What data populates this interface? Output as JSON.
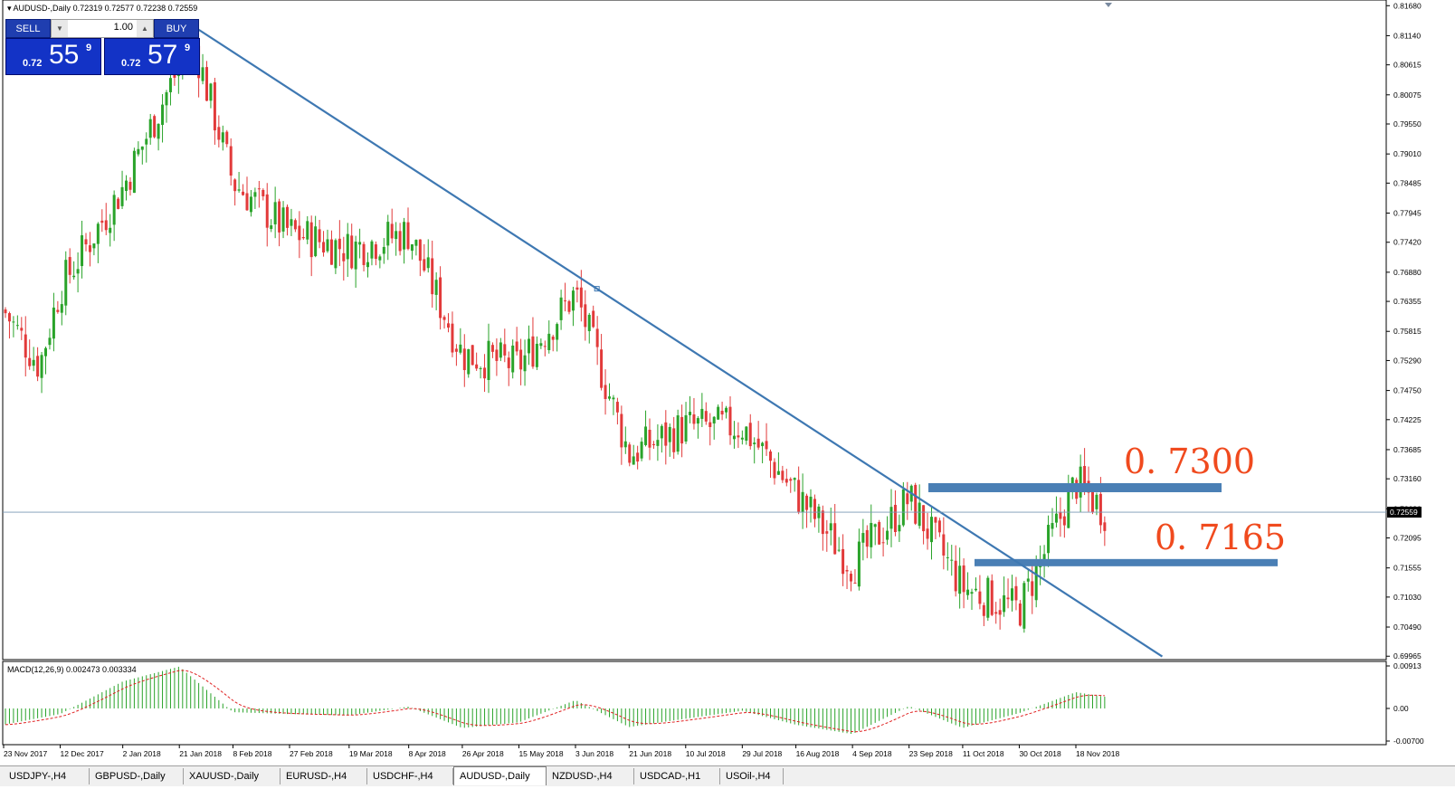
{
  "header": {
    "symbol_line": "AUDUSD-,Daily",
    "ohlc": "0.72319 0.72577 0.72238 0.72559"
  },
  "trade_panel": {
    "sell_label": "SELL",
    "buy_label": "BUY",
    "lot": "1.00",
    "sell_prefix": "0.72",
    "sell_big": "55",
    "sell_sup": "9",
    "buy_prefix": "0.72",
    "buy_big": "57",
    "buy_sup": "9"
  },
  "annotations": {
    "level_high": "0. 7300",
    "level_low": "0. 7165",
    "annotation_color": "#f04a1e",
    "zone_color": "#4a7fb5"
  },
  "macd": {
    "label": "MACD(12,26,9) 0.002473 0.003334",
    "axis_ticks": [
      "0.00913",
      "0.00",
      "-0.00700"
    ]
  },
  "tabs": [
    {
      "label": "USDJPY-,H4",
      "active": false
    },
    {
      "label": "GBPUSD-,Daily",
      "active": false
    },
    {
      "label": "XAUUSD-,Daily",
      "active": false
    },
    {
      "label": "EURUSD-,H4",
      "active": false
    },
    {
      "label": "USDCHF-,H4",
      "active": false
    },
    {
      "label": "AUDUSD-,Daily",
      "active": true
    },
    {
      "label": "NZDUSD-,H4",
      "active": false
    },
    {
      "label": "USDCAD-,H1",
      "active": false
    },
    {
      "label": "USOil-,H4",
      "active": false
    }
  ],
  "chart_data": {
    "type": "candlestick",
    "title": "AUDUSD-,Daily",
    "current_price": "0.72559",
    "price_axis_ticks": [
      "0.81680",
      "0.81140",
      "0.80615",
      "0.80075",
      "0.79550",
      "0.79010",
      "0.78485",
      "0.77945",
      "0.77420",
      "0.76880",
      "0.76355",
      "0.75815",
      "0.75290",
      "0.74750",
      "0.74225",
      "0.73685",
      "0.73160",
      "0.72620",
      "0.72095",
      "0.71555",
      "0.71030",
      "0.70490",
      "0.69965"
    ],
    "price_axis_range": [
      0.6992,
      0.8175
    ],
    "date_labels": [
      "23 Nov 2017",
      "12 Dec 2017",
      "2 Jan 2018",
      "21 Jan 2018",
      "8 Feb 2018",
      "27 Feb 2018",
      "19 Mar 2018",
      "8 Apr 2018",
      "26 Apr 2018",
      "15 May 2018",
      "3 Jun 2018",
      "21 Jun 2018",
      "10 Jul 2018",
      "29 Jul 2018",
      "16 Aug 2018",
      "4 Sep 2018",
      "23 Sep 2018",
      "11 Oct 2018",
      "30 Oct 2018",
      "18 Nov 2018"
    ],
    "trendline": {
      "start": {
        "date": "~26 Jan 2018",
        "price": 0.813
      },
      "end": {
        "date": "~17 Dec 2018",
        "price": 0.6996
      }
    },
    "resistance_zone": 0.73,
    "support_zone": 0.7165,
    "close_path": [
      {
        "date": "23 Nov 2017",
        "close": 0.762
      },
      {
        "date": "5 Dec 2017",
        "close": 0.752
      },
      {
        "date": "12 Dec 2017",
        "close": 0.766
      },
      {
        "date": "2 Jan 2018",
        "close": 0.784
      },
      {
        "date": "21 Jan 2018",
        "close": 0.806
      },
      {
        "date": "26 Jan 2018",
        "close": 0.81
      },
      {
        "date": "8 Feb 2018",
        "close": 0.785
      },
      {
        "date": "27 Feb 2018",
        "close": 0.776
      },
      {
        "date": "19 Mar 2018",
        "close": 0.773
      },
      {
        "date": "8 Apr 2018",
        "close": 0.776
      },
      {
        "date": "26 Apr 2018",
        "close": 0.754
      },
      {
        "date": "15 May 2018",
        "close": 0.752
      },
      {
        "date": "3 Jun 2018",
        "close": 0.765
      },
      {
        "date": "21 Jun 2018",
        "close": 0.736
      },
      {
        "date": "10 Jul 2018",
        "close": 0.741
      },
      {
        "date": "29 Jul 2018",
        "close": 0.741
      },
      {
        "date": "16 Aug 2018",
        "close": 0.729
      },
      {
        "date": "4 Sep 2018",
        "close": 0.716
      },
      {
        "date": "23 Sep 2018",
        "close": 0.728
      },
      {
        "date": "11 Oct 2018",
        "close": 0.712
      },
      {
        "date": "30 Oct 2018",
        "close": 0.708
      },
      {
        "date": "18 Nov 2018",
        "close": 0.731
      },
      {
        "date": "28 Nov 2018",
        "close": 0.7256
      }
    ],
    "macd_path": [
      {
        "date": "23 Nov 2017",
        "macd": -0.0035
      },
      {
        "date": "12 Dec 2017",
        "macd": -0.0012
      },
      {
        "date": "2 Jan 2018",
        "macd": 0.0058
      },
      {
        "date": "21 Jan 2018",
        "macd": 0.009
      },
      {
        "date": "8 Feb 2018",
        "macd": -0.0008
      },
      {
        "date": "27 Feb 2018",
        "macd": -0.0012
      },
      {
        "date": "19 Mar 2018",
        "macd": -0.0015
      },
      {
        "date": "8 Apr 2018",
        "macd": 0.0004
      },
      {
        "date": "26 Apr 2018",
        "macd": -0.0042
      },
      {
        "date": "15 May 2018",
        "macd": -0.003
      },
      {
        "date": "3 Jun 2018",
        "macd": 0.0018
      },
      {
        "date": "21 Jun 2018",
        "macd": -0.004
      },
      {
        "date": "10 Jul 2018",
        "macd": -0.0022
      },
      {
        "date": "29 Jul 2018",
        "macd": -0.0005
      },
      {
        "date": "16 Aug 2018",
        "macd": -0.0035
      },
      {
        "date": "4 Sep 2018",
        "macd": -0.0055
      },
      {
        "date": "23 Sep 2018",
        "macd": 0.0005
      },
      {
        "date": "11 Oct 2018",
        "macd": -0.0042
      },
      {
        "date": "30 Oct 2018",
        "macd": -0.001
      },
      {
        "date": "18 Nov 2018",
        "macd": 0.0035
      },
      {
        "date": "28 Nov 2018",
        "macd": 0.0025
      }
    ]
  }
}
